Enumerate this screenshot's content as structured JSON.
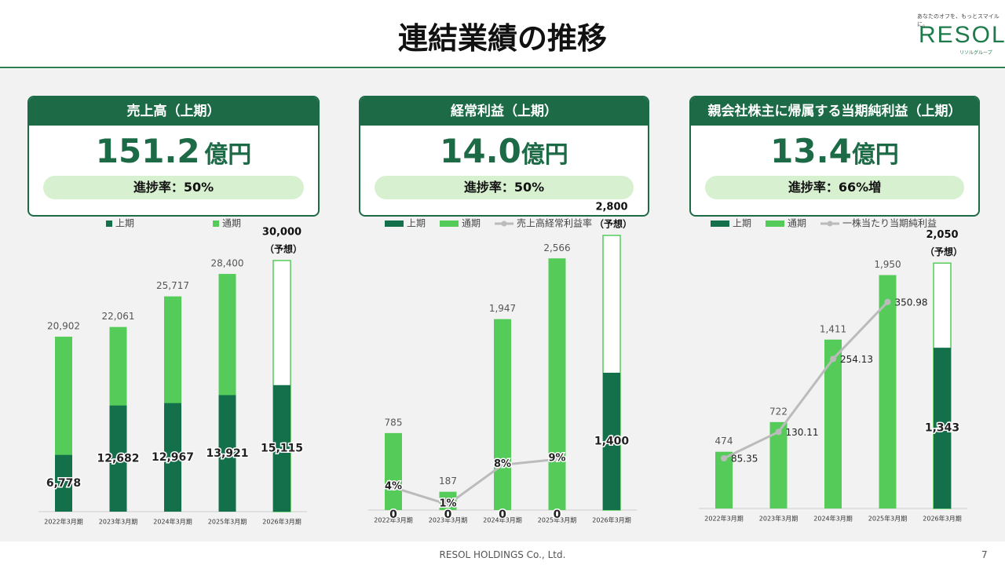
{
  "header": {
    "title": "連結業績の推移",
    "logo": "RESOL",
    "tagline": "あなたのオフを、もっとスマイルに。",
    "group": "リソルグループ"
  },
  "cards": [
    {
      "title": "売上高（上期）",
      "value": "151.2",
      "unit": "億円",
      "progress": "進捗率：50%"
    },
    {
      "title": "経常利益（上期）",
      "value": "14.0",
      "unit": "億円",
      "progress": "進捗率：50%"
    },
    {
      "title": "親会社株主に帰属する当期純利益（上期）",
      "value": "13.4",
      "unit": "億円",
      "progress": "進捗率：66%増"
    }
  ],
  "chart_data": [
    {
      "type": "bar",
      "categories": [
        "2022年3月期",
        "2023年3月期",
        "2024年3月期",
        "2025年3月期",
        "2026年3月期"
      ],
      "ylim": [
        0,
        33750
      ],
      "series": [
        {
          "name": "通期",
          "color": "#55cc5a",
          "values": [
            20902,
            22061,
            25717,
            28400,
            30000
          ],
          "value_labels": [
            "20,902",
            "22,061",
            "25,717",
            "28,400",
            "30,000"
          ]
        },
        {
          "name": "上期",
          "color": "#14704a",
          "values": [
            6778,
            12682,
            12967,
            13921,
            15115
          ],
          "value_labels": [
            "6,778",
            "12,682",
            "12,967",
            "13,921",
            "15,115"
          ]
        }
      ],
      "annotations": [
        {
          "text": "（予想）",
          "category": "2026年3月期"
        }
      ]
    },
    {
      "type": "bar",
      "categories": [
        "2022年3月期",
        "2023年3月期",
        "2024年3月期",
        "2025年3月期",
        "2026年3月期"
      ],
      "ylim": [
        0,
        2880
      ],
      "y2lim": [
        0,
        50
      ],
      "line_label_position": "center",
      "series": [
        {
          "name": "通期",
          "color": "#55cc5a",
          "values": [
            785,
            187,
            1947,
            2566,
            2800
          ],
          "value_labels": [
            "785",
            "187",
            "1,947",
            "2,566",
            "2,800"
          ]
        },
        {
          "name": "上期",
          "color": "#14704a",
          "values": [
            0,
            0,
            0,
            0,
            1400
          ],
          "value_labels": [
            "0",
            "0",
            "0",
            "0",
            "1,400"
          ]
        },
        {
          "name": "売上高経常利益率",
          "type": "line",
          "axis": "y2",
          "color": "#bbbbbb",
          "values": [
            4,
            1,
            8,
            9,
            null
          ],
          "value_labels": [
            "4%",
            "1%",
            "8%",
            "9%",
            null
          ]
        }
      ],
      "annotations": [
        {
          "text": "（予想）",
          "category": "2026年3月期"
        }
      ]
    },
    {
      "type": "bar",
      "categories": [
        "2022年3月期",
        "2023年3月期",
        "2024年3月期",
        "2025年3月期",
        "2026年3月期"
      ],
      "ylim": [
        0,
        2360
      ],
      "y2lim": [
        0,
        480
      ],
      "line_label_position": "right",
      "series": [
        {
          "name": "通期",
          "color": "#55cc5a",
          "values": [
            474,
            722,
            1411,
            1950,
            2050
          ],
          "value_labels": [
            "474",
            "722",
            "1,411",
            "1,950",
            "2,050"
          ]
        },
        {
          "name": "上期",
          "color": "#14704a",
          "values": [
            null,
            null,
            null,
            null,
            1343
          ],
          "value_labels": [
            null,
            null,
            null,
            null,
            "1,343"
          ]
        },
        {
          "name": "一株当たり当期純利益",
          "type": "line",
          "axis": "y2",
          "color": "#bbbbbb",
          "values": [
            85.35,
            130.11,
            254.13,
            350.98,
            null
          ]
        }
      ],
      "annotations": [
        {
          "text": "（予想）",
          "category": "2026年3月期"
        }
      ]
    }
  ],
  "footer": {
    "company": "RESOL HOLDINGS Co., Ltd.",
    "page": "7"
  }
}
